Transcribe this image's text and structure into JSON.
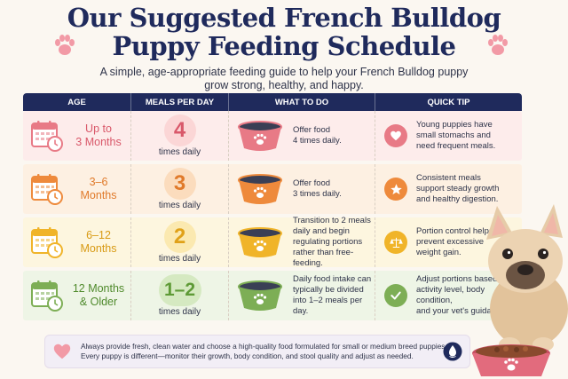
{
  "title": {
    "line1": "Our Suggested French Bulldog",
    "line2": "Puppy Feeding Schedule"
  },
  "subtitle": {
    "line1": "A simple, age-appropriate feeding guide to help your French Bulldog puppy",
    "line2": "grow strong, healthy, and happy."
  },
  "table": {
    "headers": [
      "AGE",
      "MEALS PER DAY",
      "WHAT TO DO",
      "QUICK TIP"
    ],
    "rows": [
      {
        "age_line1": "Up to",
        "age_line2": "3 Months",
        "meals": "4",
        "meals_sub": "times daily",
        "todo_line1": "Offer food",
        "todo_line2": "4 times daily.",
        "todo_line3": "",
        "todo_line4": "",
        "tip_line1": "Young puppies have",
        "tip_line2": "small stomachs and",
        "tip_line3": "need frequent meals.",
        "tip_icon": "heart-icon",
        "bg": "#fdeceb",
        "accent": "#e87a86",
        "circle": "#fbd6d6",
        "num_color": "#d9586a",
        "age_color": "#d9586a"
      },
      {
        "age_line1": "3–6",
        "age_line2": "Months",
        "meals": "3",
        "meals_sub": "times daily",
        "todo_line1": "Offer food",
        "todo_line2": "3 times daily.",
        "todo_line3": "",
        "todo_line4": "",
        "tip_line1": "Consistent meals",
        "tip_line2": "support steady growth",
        "tip_line3": "and healthy digestion.",
        "tip_icon": "star-icon",
        "bg": "#fdf0e2",
        "accent": "#ee8a3c",
        "circle": "#fbdcbd",
        "num_color": "#e07a2a",
        "age_color": "#e07a2a"
      },
      {
        "age_line1": "6–12",
        "age_line2": "Months",
        "meals": "2",
        "meals_sub": "times daily",
        "todo_line1": "Transition to 2 meals",
        "todo_line2": "daily and begin",
        "todo_line3": "regulating portions",
        "todo_line4": "rather than free-feeding.",
        "tip_line1": "Portion control helps",
        "tip_line2": "prevent excessive",
        "tip_line3": "weight gain.",
        "tip_icon": "scale-icon",
        "bg": "#fdf6df",
        "accent": "#f0b429",
        "circle": "#fbe9b0",
        "num_color": "#e0a118",
        "age_color": "#d89a14"
      },
      {
        "age_line1": "12 Months",
        "age_line2": "& Older",
        "meals": "1–2",
        "meals_sub": "times daily",
        "todo_line1": "Daily food intake can",
        "todo_line2": "typically be divided",
        "todo_line3": "into 1–2 meals per day.",
        "todo_line4": "",
        "tip_line1": "Adjust portions based on",
        "tip_line2": "activity level, body condition,",
        "tip_line3": "and your vet's guidance.",
        "tip_icon": "check-icon",
        "bg": "#eef5e6",
        "accent": "#7dae55",
        "circle": "#d5e9c1",
        "num_color": "#5e9a36",
        "age_color": "#4f8a2c"
      }
    ]
  },
  "footer": {
    "line1": "Always provide fresh, clean water and choose a high-quality food formulated for small or medium breed puppies.",
    "line2": "Every puppy is different—monitor their growth, body condition, and stool quality and adjust as needed."
  },
  "colors": {
    "navy": "#1f2a5c",
    "paw_pink": "#f29aa6"
  }
}
